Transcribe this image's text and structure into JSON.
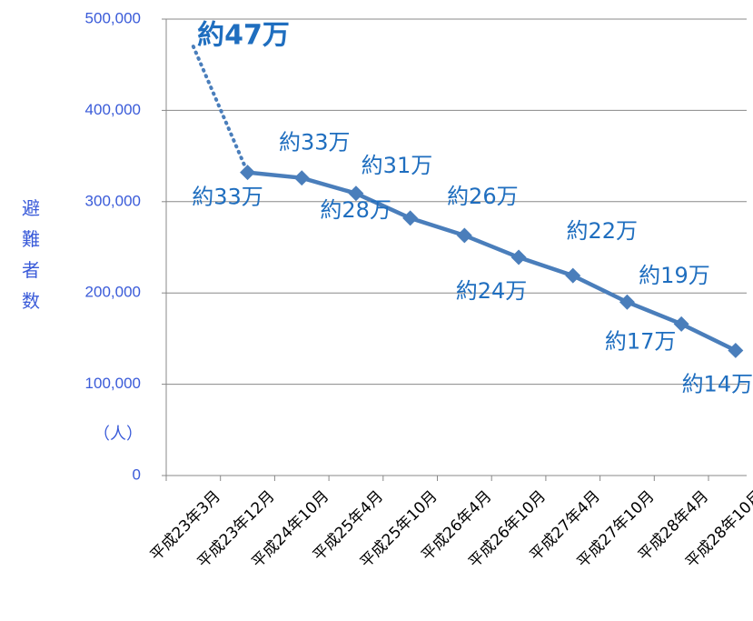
{
  "chart_data": {
    "type": "line",
    "y_label": "避難者数",
    "unit": "（人）",
    "categories": [
      "平成23年3月",
      "平成23年12月",
      "平成24年10月",
      "平成25年4月",
      "平成25年10月",
      "平成26年4月",
      "平成26年10月",
      "平成27年4月",
      "平成27年10月",
      "平成28年4月",
      "平成28年10月"
    ],
    "series": [
      {
        "color": "#4a7ebb",
        "values": [
          470000,
          332000,
          326000,
          309000,
          282000,
          263000,
          239000,
          219000,
          190000,
          166000,
          137000
        ],
        "value_labels": [
          "約47万",
          "約33万",
          "約33万",
          "約31万",
          "約28万",
          "約26万",
          "約24万",
          "約22万",
          "約19万",
          "約17万",
          "約14万"
        ]
      }
    ],
    "dotted_to": 1,
    "ylim": [
      0,
      500000
    ],
    "yticks": [
      0,
      {
        "value": 100000,
        "label": "100,000"
      },
      {
        "value": 200000,
        "label": "200,000"
      },
      {
        "value": 300000,
        "label": "300,000"
      },
      {
        "value": 400000,
        "label": "400,000"
      },
      {
        "value": 500000,
        "label": "500,000"
      }
    ],
    "grid": true
  }
}
